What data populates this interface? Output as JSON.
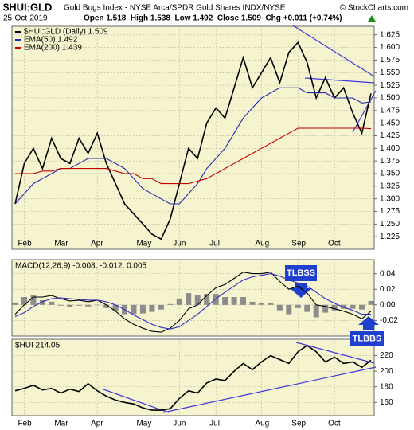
{
  "header": {
    "title": "$HUI:GLD",
    "subtitle": "Gold Bugs Index - NYSE Arca/SPDR Gold Shares INDX/NYSE",
    "credit": "© StockCharts.com",
    "date": "25-Oct-2019",
    "quote": "Open 1.518  High 1.538  Low 1.492  Close 1.509  Chg +0.011 (+0.74%)"
  },
  "chart_data": [
    {
      "type": "line",
      "categories": [
        null,
        "Feb",
        null,
        null,
        null,
        "Mar",
        null,
        null,
        null,
        "Apr",
        null,
        null,
        null,
        null,
        "May",
        null,
        null,
        null,
        "Jun",
        null,
        null,
        null,
        "Jul",
        null,
        null,
        null,
        null,
        "Aug",
        null,
        null,
        null,
        "Sep",
        null,
        null,
        null,
        "Oct",
        null,
        null,
        null,
        null
      ],
      "ylim": [
        1.2,
        1.642
      ],
      "yticks": [
        1.225,
        {
          "value": 1.25,
          "label": "1.250"
        },
        1.275,
        {
          "value": 1.3,
          "label": "1.300"
        },
        1.325,
        {
          "value": 1.35,
          "label": "1.350"
        },
        1.375,
        {
          "value": 1.4,
          "label": "1.400"
        },
        1.425,
        {
          "value": 1.45,
          "label": "1.450"
        },
        1.475,
        {
          "value": 1.5,
          "label": "1.500"
        },
        1.525,
        {
          "value": 1.55,
          "label": "1.550"
        },
        1.575,
        {
          "value": 1.6,
          "label": "1.600"
        },
        1.625
      ],
      "series": [
        {
          "name": "$HUI:GLD (Daily) 1.509",
          "color": "#000000",
          "values": [
            1.29,
            1.37,
            1.4,
            1.36,
            1.42,
            1.38,
            1.37,
            1.42,
            1.39,
            1.43,
            1.37,
            1.33,
            1.29,
            1.27,
            1.25,
            1.23,
            1.22,
            1.26,
            1.33,
            1.4,
            1.38,
            1.45,
            1.48,
            1.46,
            1.52,
            1.58,
            1.52,
            1.55,
            1.58,
            1.53,
            1.59,
            1.61,
            1.57,
            1.5,
            1.54,
            1.5,
            1.52,
            1.47,
            1.43,
            1.509
          ]
        },
        {
          "name": "EMA(50) 1.492",
          "color": "#1f2bb0",
          "values": [
            1.29,
            1.31,
            1.33,
            1.34,
            1.35,
            1.36,
            1.36,
            1.37,
            1.38,
            1.38,
            1.38,
            1.37,
            1.36,
            1.34,
            1.32,
            1.31,
            1.3,
            1.29,
            1.29,
            1.31,
            1.33,
            1.36,
            1.38,
            1.4,
            1.43,
            1.46,
            1.48,
            1.5,
            1.51,
            1.52,
            1.52,
            1.52,
            1.51,
            1.51,
            1.51,
            1.5,
            1.5,
            1.5,
            1.49,
            1.492
          ]
        },
        {
          "name": "EMA(200) 1.439",
          "color": "#c00000",
          "values": [
            1.35,
            1.35,
            1.35,
            1.355,
            1.355,
            1.36,
            1.36,
            1.36,
            1.36,
            1.36,
            1.36,
            1.355,
            1.35,
            1.35,
            1.34,
            1.34,
            1.33,
            1.33,
            1.33,
            1.33,
            1.335,
            1.34,
            1.35,
            1.36,
            1.37,
            1.38,
            1.39,
            1.4,
            1.41,
            1.42,
            1.43,
            1.44,
            1.44,
            1.44,
            1.44,
            1.44,
            1.44,
            1.44,
            1.44,
            1.439
          ]
        }
      ]
    },
    {
      "type": "line",
      "title": "MACD(12,26,9) -0.008, -0.012, 0.005",
      "annotations": [
        "TLBSS",
        "TLBBS"
      ],
      "ylim": [
        -0.04,
        0.058
      ],
      "yticks": [
        -0.02,
        {
          "value": 0,
          "label": "0.00"
        },
        0.02,
        0.04
      ],
      "series": [
        {
          "mark": "bar",
          "color": "#8c8c8c",
          "values": [
            0.003,
            0.01,
            0.012,
            0.006,
            0.004,
            -0.001,
            -0.003,
            -0.001,
            -0.002,
            0.0,
            -0.004,
            -0.008,
            -0.012,
            -0.012,
            -0.011,
            -0.009,
            -0.006,
            0.001,
            0.008,
            0.015,
            0.012,
            0.014,
            0.014,
            0.01,
            0.01,
            0.01,
            0.004,
            0.002,
            0.002,
            -0.007,
            -0.012,
            -0.004,
            -0.009,
            -0.016,
            -0.01,
            -0.007,
            -0.005,
            -0.005,
            -0.006,
            0.005
          ]
        },
        {
          "color": "#000000",
          "values": [
            -0.012,
            0.0,
            0.01,
            0.01,
            0.012,
            0.008,
            0.005,
            0.006,
            0.004,
            0.006,
            0.0,
            -0.008,
            -0.018,
            -0.025,
            -0.03,
            -0.034,
            -0.035,
            -0.03,
            -0.02,
            -0.005,
            0.0,
            0.012,
            0.022,
            0.026,
            0.034,
            0.042,
            0.04,
            0.04,
            0.042,
            0.03,
            0.02,
            0.024,
            0.015,
            0.0,
            -0.002,
            -0.005,
            -0.008,
            -0.012,
            -0.018,
            -0.008
          ]
        },
        {
          "color": "#3030c0",
          "values": [
            -0.015,
            -0.01,
            -0.002,
            0.004,
            0.008,
            0.009,
            0.008,
            0.007,
            0.006,
            0.006,
            0.004,
            0.0,
            -0.006,
            -0.013,
            -0.019,
            -0.025,
            -0.029,
            -0.031,
            -0.028,
            -0.02,
            -0.012,
            -0.002,
            0.008,
            0.016,
            0.024,
            0.032,
            0.036,
            0.038,
            0.04,
            0.037,
            0.032,
            0.028,
            0.024,
            0.016,
            0.008,
            0.002,
            -0.003,
            -0.007,
            -0.012,
            -0.012
          ]
        }
      ]
    },
    {
      "type": "line",
      "title": "$HUI 214.05",
      "ylim": [
        143,
        241
      ],
      "yticks": [
        160,
        180,
        200,
        220
      ],
      "series": [
        {
          "color": "#000000",
          "values": [
            175,
            178,
            182,
            176,
            178,
            172,
            177,
            174,
            184,
            175,
            168,
            163,
            160,
            158,
            153,
            150,
            150,
            152,
            165,
            175,
            172,
            185,
            190,
            188,
            200,
            210,
            202,
            212,
            220,
            215,
            210,
            225,
            233,
            225,
            212,
            218,
            210,
            212,
            205,
            214.05
          ]
        }
      ]
    }
  ]
}
